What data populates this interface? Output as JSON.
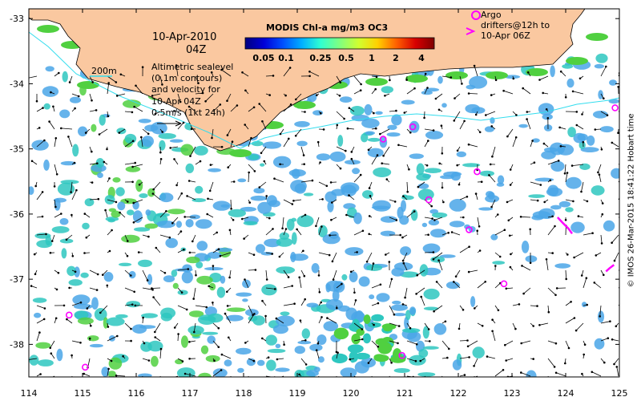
{
  "map": {
    "title": "MODIS Chl-a mg/m3 OC3",
    "date": "10-Apr-2010",
    "time": "04Z",
    "contour_label": "200m",
    "altimetry_text": "Altimetric sealevel\n(0.1m contours)\nand velocity for\n10-Apr 04Z\n0.5m/s (1kt 24h)",
    "argo_text": "Argo\ndrifters@12h to\n10-Apr 06Z",
    "credit": "© IMOS 26-Mar-2015 18:41:22 Hobart time",
    "lon_ticks": [
      114,
      115,
      116,
      117,
      118,
      119,
      120,
      121,
      122,
      123,
      124,
      125
    ],
    "lat_ticks": [
      -33,
      -34,
      -35,
      -36,
      -37,
      -38
    ],
    "lon_range": [
      114,
      125
    ],
    "lat_range": [
      -38.5,
      -32.85
    ],
    "colorbar": {
      "ticks": [
        "0.05",
        "0.1",
        "0.25",
        "0.5",
        "1",
        "2",
        "4"
      ],
      "colors": [
        "#00007f",
        "#0000d8",
        "#0050ff",
        "#00b0ff",
        "#30ffd0",
        "#80ff80",
        "#d0ff30",
        "#ffd000",
        "#ff6000",
        "#d80000",
        "#7f0000"
      ]
    },
    "colors": {
      "land": "#fac8a0",
      "chl_low": "#4aa6e8",
      "chl_mid": "#2ec7c0",
      "chl_high": "#50d040",
      "argo": "#ff00ff",
      "contour": "#33ddee"
    },
    "argo_drifters": [
      {
        "lon": 120.6,
        "lat": -34.85
      },
      {
        "lon": 121.15,
        "lat": -34.66
      },
      {
        "lon": 122.35,
        "lat": -35.35
      },
      {
        "lon": 121.45,
        "lat": -35.78
      },
      {
        "lon": 122.2,
        "lat": -36.24
      },
      {
        "lon": 122.85,
        "lat": -37.07
      },
      {
        "lon": 114.75,
        "lat": -37.55
      },
      {
        "lon": 115.05,
        "lat": -38.35
      },
      {
        "lon": 120.95,
        "lat": -38.17
      },
      {
        "lon": 124.92,
        "lat": -34.37
      }
    ],
    "drifter_tracks": [
      {
        "lon": [
          123.85,
          123.95,
          124.05,
          124.12
        ],
        "lat": [
          -36.05,
          -36.14,
          -36.22,
          -36.3
        ]
      },
      {
        "lon": [
          124.75,
          124.82,
          124.9
        ],
        "lat": [
          -36.88,
          -36.83,
          -36.78
        ]
      }
    ]
  }
}
